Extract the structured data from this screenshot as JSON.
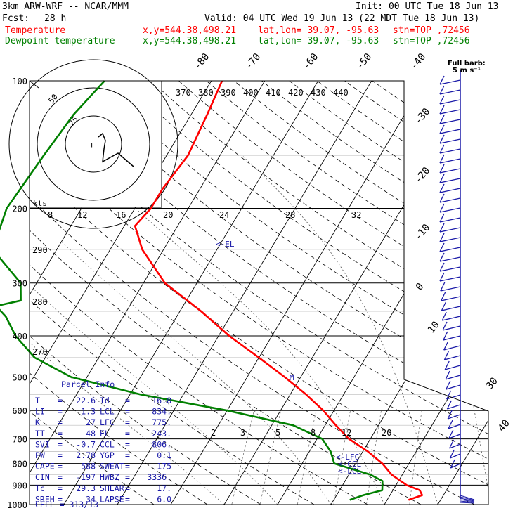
{
  "header": {
    "model": "3km ARW-WRF -- NCAR/MMM",
    "init": "Init: 00 UTC Tue 18 Jun 13",
    "fcst_label": "Fcst:",
    "fcst_value": "28 h",
    "valid": "Valid: 04 UTC Wed 19 Jun 13 (22 MDT Tue 18 Jun 13)",
    "temp_label": "Temperature",
    "dew_label": "Dewpoint temperature",
    "xy": "x,y=544.38,498.21",
    "latlon": "lat,lon= 39.07, -95.63",
    "stn": "stn=TOP ,72456",
    "temp_color": "#ff0000",
    "dew_color": "#008000"
  },
  "barb_legend": {
    "line1": "Full barb:",
    "line2": "5 m s⁻¹"
  },
  "hodo_label": "kts",
  "parcel_info": {
    "title": "Parcel Info",
    "rows": [
      [
        "T",
        "=",
        "22.6",
        "Td",
        "=",
        "16.8"
      ],
      [
        "LI",
        "=",
        "-1.3",
        "LCL",
        "=",
        "834."
      ],
      [
        "K",
        "=",
        "27",
        "LFC",
        "=",
        "775."
      ],
      [
        "TT",
        "=",
        "48",
        "EL",
        "=",
        "243."
      ],
      [
        "SVI",
        "=",
        "-0.7",
        "CCL",
        "=",
        "806."
      ],
      [
        "PW",
        "=",
        "2.78",
        "YGP",
        "=",
        "0.1"
      ],
      [
        "CAPE",
        "=",
        "588",
        "SWEAT",
        "=",
        "175"
      ],
      [
        "CIN",
        "=",
        "-197",
        "HWBZ",
        "=",
        "3336."
      ],
      [
        "Tc",
        "=",
        "29.3",
        "SHEAR",
        "=",
        "17."
      ],
      [
        "SREH",
        "=",
        "34",
        "LAPSE",
        "=",
        "6.0"
      ]
    ],
    "cell": "CELL = 313/13"
  },
  "chart_data": {
    "type": "line",
    "title": "Skew-T log-P diagram",
    "pressure_labels": [
      "100",
      "200",
      "300",
      "400",
      "500",
      "600",
      "700",
      "800",
      "900",
      "1000"
    ],
    "pressure_levels": [
      100,
      200,
      300,
      400,
      500,
      600,
      700,
      800,
      900,
      1000
    ],
    "temp_labels": [
      "-80",
      "-70",
      "-60",
      "-50",
      "-40",
      "-30",
      "-20",
      "-10",
      "0",
      "10",
      "30",
      "40"
    ],
    "theta_labels": [
      "370",
      "380",
      "390",
      "400",
      "410",
      "420",
      "430",
      "440"
    ],
    "theta_side_labels": [
      "290",
      "280",
      "270"
    ],
    "mixing_labels": [
      "2",
      "3",
      "5",
      "8",
      "12",
      "20"
    ],
    "hodo_speed_labels": [
      "8",
      "12",
      "16",
      "20",
      "24",
      "28",
      "32"
    ],
    "hodo_ring_labels": [
      "25",
      "50"
    ],
    "markers": [
      "M",
      "EL",
      "LFC",
      "CCL",
      "LCL"
    ],
    "series": [
      {
        "name": "Temperature",
        "p": [
          100,
          120,
          150,
          180,
          200,
          220,
          250,
          300,
          350,
          400,
          450,
          500,
          550,
          600,
          650,
          700,
          750,
          800,
          850,
          900,
          925,
          950,
          975
        ],
        "t": [
          -58,
          -57,
          -56,
          -57,
          -57,
          -58,
          -54,
          -46,
          -36,
          -28,
          -20,
          -13,
          -7,
          -2,
          2,
          6,
          11,
          15,
          18,
          22,
          25,
          26,
          24
        ]
      },
      {
        "name": "Dewpoint temperature",
        "p": [
          100,
          120,
          150,
          200,
          250,
          300,
          330,
          340,
          360,
          400,
          450,
          500,
          550,
          600,
          650,
          700,
          750,
          800,
          850,
          880,
          925,
          950,
          975
        ],
        "t": [
          -80,
          -82,
          -83,
          -84,
          -82,
          -73,
          -71,
          -75,
          -72,
          -68,
          -62,
          -53,
          -38,
          -20,
          -6,
          1,
          4,
          6,
          14,
          17,
          18,
          15,
          13
        ]
      }
    ],
    "ylim": [
      1000,
      100
    ],
    "yscale": "log"
  }
}
